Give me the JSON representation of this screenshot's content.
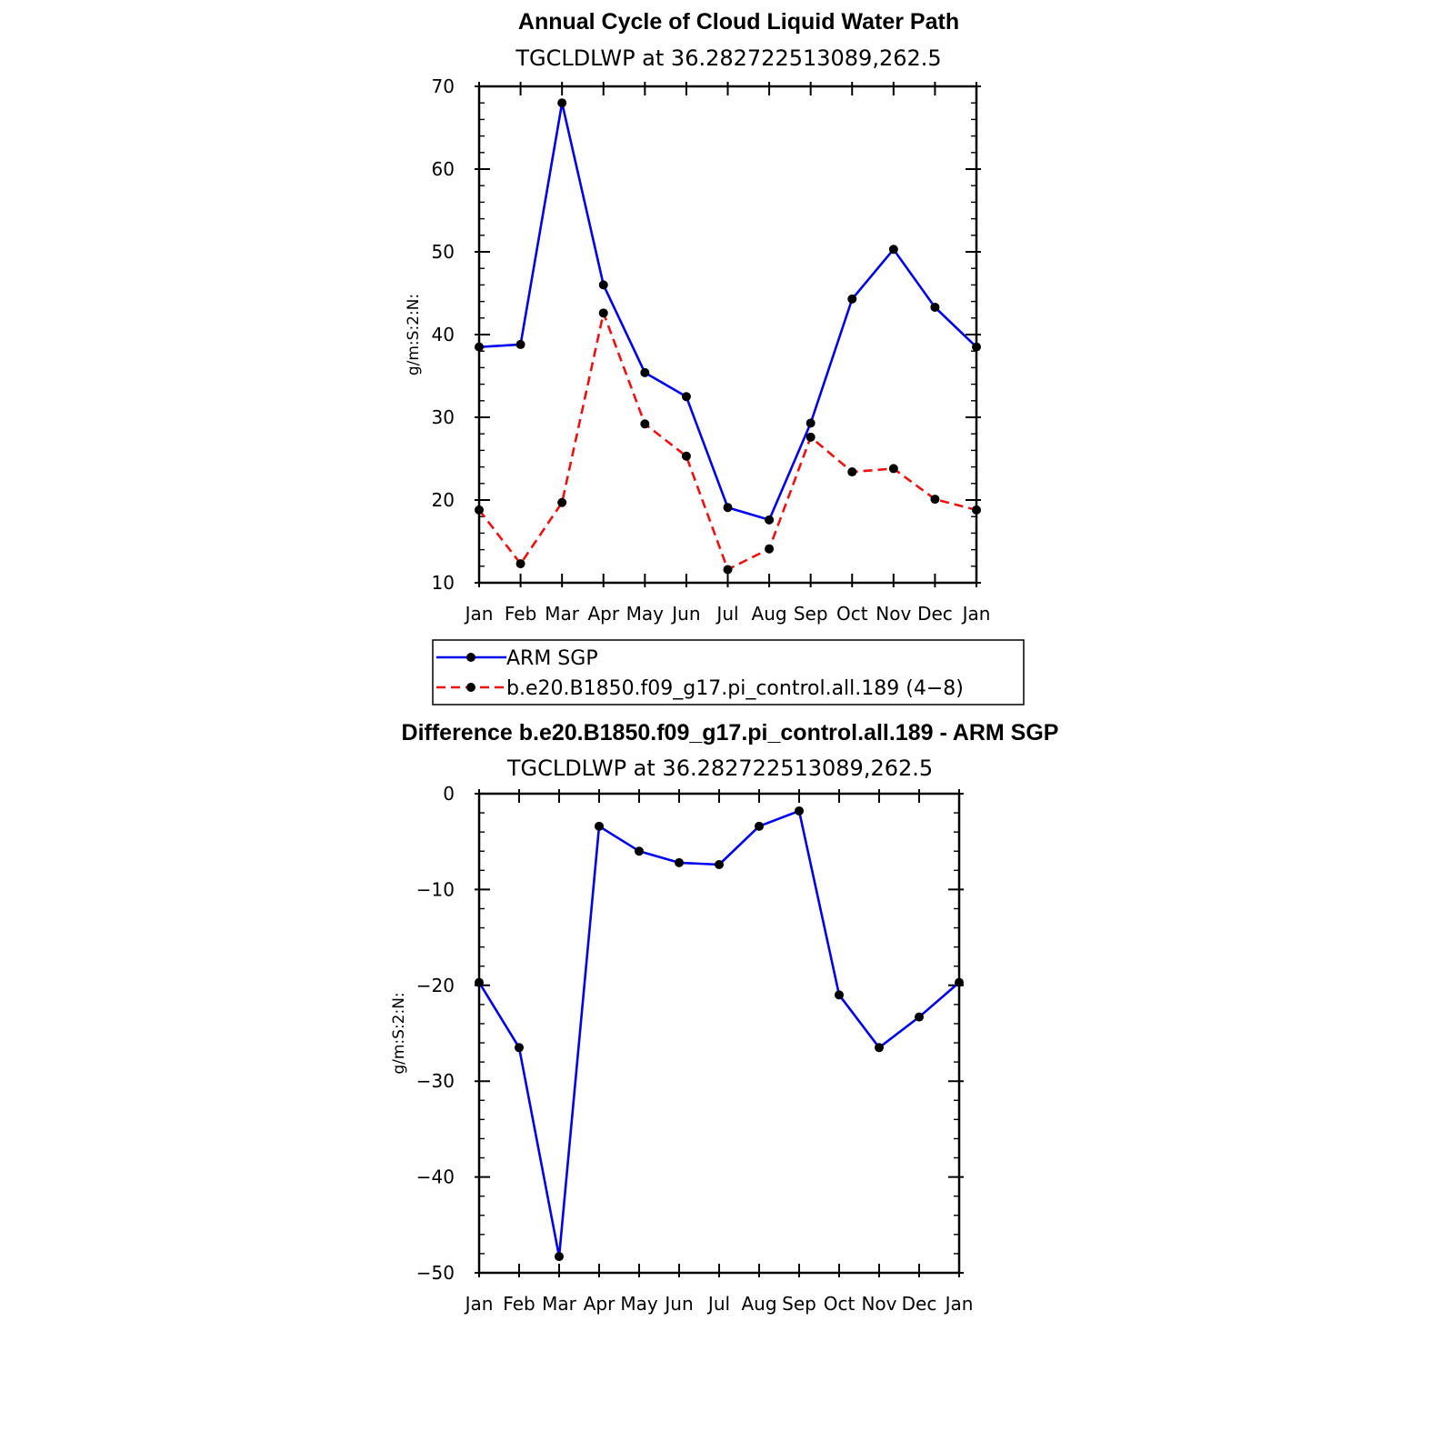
{
  "colors": {
    "arm": "#0000ee",
    "model": "#ee1010",
    "marker": "#000000"
  },
  "chart_data": [
    {
      "type": "line",
      "title": "Annual Cycle of Cloud Liquid Water Path",
      "subtitle": "TGCLDLWP  at  36.282722513089,262.5",
      "ylabel": "g/m:S:2:N:",
      "categories": [
        "Jan",
        "Feb",
        "Mar",
        "Apr",
        "May",
        "Jun",
        "Jul",
        "Aug",
        "Sep",
        "Oct",
        "Nov",
        "Dec",
        "Jan"
      ],
      "ylim": [
        10,
        70
      ],
      "yticks": [
        10,
        20,
        30,
        40,
        50,
        60,
        70
      ],
      "legend_position": "bottom",
      "series": [
        {
          "name": "ARM  SGP",
          "style": "solid",
          "color_key": "arm",
          "values": [
            38.5,
            38.8,
            68.0,
            46.0,
            35.4,
            32.5,
            19.1,
            17.6,
            29.3,
            44.3,
            50.3,
            43.3,
            38.5
          ]
        },
        {
          "name": "b.e20.B1850.f09_g17.pi_control.all.189  (4−8)",
          "style": "dashed",
          "color_key": "model",
          "values": [
            18.8,
            12.3,
            19.7,
            42.6,
            29.2,
            25.3,
            11.6,
            14.1,
            27.6,
            23.4,
            23.8,
            20.1,
            18.8
          ]
        }
      ]
    },
    {
      "type": "line",
      "title": "Difference b.e20.B1850.f09_g17.pi_control.all.189 - ARM SGP",
      "subtitle": "TGCLDLWP  at  36.282722513089,262.5",
      "ylabel": "g/m:S:2:N:",
      "categories": [
        "Jan",
        "Feb",
        "Mar",
        "Apr",
        "May",
        "Jun",
        "Jul",
        "Aug",
        "Sep",
        "Oct",
        "Nov",
        "Dec",
        "Jan"
      ],
      "ylim": [
        -50,
        0
      ],
      "yticks": [
        -50,
        -40,
        -30,
        -20,
        -10,
        0
      ],
      "ytick_labels": [
        "−50",
        "−40",
        "−30",
        "−20",
        "−10",
        "0"
      ],
      "series": [
        {
          "style": "solid",
          "color_key": "arm",
          "values": [
            -19.7,
            -26.5,
            -48.3,
            -3.4,
            -6.0,
            -7.2,
            -7.4,
            -3.4,
            -1.8,
            -21.0,
            -26.5,
            -23.3,
            -19.7
          ]
        }
      ]
    }
  ]
}
